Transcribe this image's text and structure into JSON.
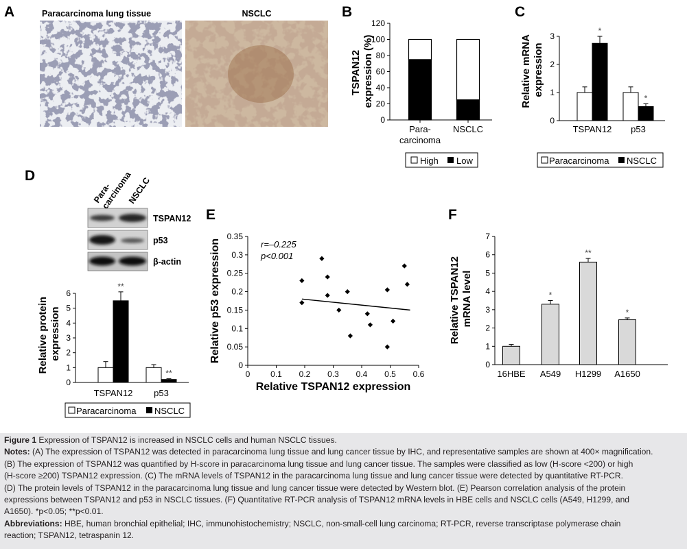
{
  "panels": {
    "A": {
      "letter": "A",
      "left_title": "Paracarcinoma lung tissue",
      "right_title": "NSCLC"
    },
    "B": {
      "letter": "B",
      "ylabel_line1": "TSPAN12",
      "ylabel_line2": "expression (%)",
      "legend": [
        "High",
        "Low"
      ]
    },
    "C": {
      "letter": "C",
      "ylabel_line1": "Relative mRNA",
      "ylabel_line2": "expression",
      "legend": [
        "Paracarcinoma",
        "NSCLC"
      ]
    },
    "D": {
      "letter": "D",
      "blot_lanes": [
        "Para-",
        "carcinoma",
        "NSCLC"
      ],
      "blot_labels": [
        "TSPAN12",
        "p53",
        "β-actin"
      ],
      "ylabel_line1": "Relative protein",
      "ylabel_line2": "expression",
      "legend": [
        "Paracarcinoma",
        "NSCLC"
      ]
    },
    "E": {
      "letter": "E",
      "stat_r": "r=–0.225",
      "stat_p": "p<0.001"
    },
    "F": {
      "letter": "F",
      "ylabel_line1": "Relative TSPAN12",
      "ylabel_line2": "mRNA level"
    }
  },
  "chart_data": [
    {
      "panel": "B",
      "type": "bar",
      "stacked": true,
      "categories": [
        "Para-carcinoma",
        "NSCLC"
      ],
      "category_lines": [
        [
          "Para-",
          "carcinoma"
        ],
        [
          "NSCLC"
        ]
      ],
      "series": [
        {
          "name": "Low",
          "values": [
            75,
            25
          ],
          "color": "#000000"
        },
        {
          "name": "High",
          "values": [
            25,
            75
          ],
          "color": "#ffffff"
        }
      ],
      "ylabel": "TSPAN12 expression (%)",
      "ylim": [
        0,
        120
      ],
      "yticks": [
        0,
        20,
        40,
        60,
        80,
        100,
        120
      ]
    },
    {
      "panel": "C",
      "type": "bar",
      "categories": [
        "TSPAN12",
        "p53"
      ],
      "series": [
        {
          "name": "Paracarcinoma",
          "values": [
            1.0,
            1.0
          ],
          "errors": [
            0.2,
            0.2
          ],
          "color": "#ffffff"
        },
        {
          "name": "NSCLC",
          "values": [
            2.75,
            0.5
          ],
          "errors": [
            0.25,
            0.1
          ],
          "color": "#000000"
        }
      ],
      "significance": [
        [
          "",
          "*"
        ],
        [
          "",
          "*"
        ]
      ],
      "ylabel": "Relative mRNA expression",
      "ylim": [
        0,
        3
      ],
      "yticks": [
        0,
        1,
        2,
        3
      ]
    },
    {
      "panel": "D",
      "type": "bar",
      "categories": [
        "TSPAN12",
        "p53"
      ],
      "series": [
        {
          "name": "Paracarcinoma",
          "values": [
            1.0,
            1.0
          ],
          "errors": [
            0.4,
            0.2
          ],
          "color": "#ffffff"
        },
        {
          "name": "NSCLC",
          "values": [
            5.5,
            0.2
          ],
          "errors": [
            0.6,
            0.05
          ],
          "color": "#000000"
        }
      ],
      "significance": [
        [
          "",
          "**"
        ],
        [
          "",
          "**"
        ]
      ],
      "ylabel": "Relative protein expression",
      "ylim": [
        0,
        6
      ],
      "yticks": [
        0,
        1,
        2,
        3,
        4,
        5,
        6
      ]
    },
    {
      "panel": "E",
      "type": "scatter",
      "points": [
        [
          0.19,
          0.23
        ],
        [
          0.19,
          0.17
        ],
        [
          0.26,
          0.29
        ],
        [
          0.28,
          0.24
        ],
        [
          0.28,
          0.19
        ],
        [
          0.32,
          0.15
        ],
        [
          0.35,
          0.2
        ],
        [
          0.36,
          0.08
        ],
        [
          0.42,
          0.14
        ],
        [
          0.43,
          0.11
        ],
        [
          0.49,
          0.205
        ],
        [
          0.49,
          0.05
        ],
        [
          0.51,
          0.12
        ],
        [
          0.55,
          0.27
        ],
        [
          0.56,
          0.22
        ]
      ],
      "fit_line": [
        [
          0.19,
          0.18
        ],
        [
          0.57,
          0.15
        ]
      ],
      "xlabel": "Relative TSPAN12 expression",
      "ylabel": "Relative p53 expression",
      "xlim": [
        0,
        0.6
      ],
      "ylim": [
        0,
        0.35
      ],
      "xticks": [
        0,
        0.1,
        0.2,
        0.3,
        0.4,
        0.5,
        0.6
      ],
      "yticks": [
        0,
        0.05,
        0.1,
        0.15,
        0.2,
        0.25,
        0.3,
        0.35
      ]
    },
    {
      "panel": "F",
      "type": "bar",
      "categories": [
        "16HBE",
        "A549",
        "H1299",
        "A1650"
      ],
      "values": [
        1.0,
        3.3,
        5.6,
        2.45
      ],
      "errors": [
        0.1,
        0.2,
        0.2,
        0.1
      ],
      "significance": [
        "",
        "*",
        "**",
        "*"
      ],
      "color": "#d9d9d9",
      "ylabel": "Relative TSPAN12 mRNA level",
      "ylim": [
        0,
        7
      ],
      "yticks": [
        0,
        1,
        2,
        3,
        4,
        5,
        6,
        7
      ]
    }
  ],
  "caption": {
    "fig_label": "Figure 1",
    "fig_title": " Expression of TSPAN12 is increased in NSCLC cells and human NSCLC tissues.",
    "notes_label": "Notes:",
    "notes_lines": [
      " (A) The expression of TSPAN12 was detected in paracarcinoma lung tissue and lung cancer tissue by IHC, and representative samples are shown at 400× magnification.",
      "(B) The expression of TSPAN12 was quantified by H-score in paracarcinoma lung tissue and lung cancer tissue. The samples were classified as low (H-score <200) or high",
      "(H-score ≥200) TSPAN12 expression. (C) The mRNA levels of TSPAN12 in the paracarcinoma lung tissue and lung cancer tissue were detected by quantitative RT-PCR.",
      "(D) The protein levels of TSPAN12 in the paracarcinoma lung tissue and lung cancer tissue were detected by Western blot. (E) Pearson correlation analysis of the protein",
      "expressions between TSPAN12 and p53 in NSCLC tissues. (F) Quantitative RT-PCR analysis of TSPAN12 mRNA levels in HBE cells and NSCLC cells (A549, H1299, and",
      "A1650). *p<0.05; **p<0.01."
    ],
    "abbrev_label": "Abbreviations:",
    "abbrev_lines": [
      " HBE, human bronchial epithelial; IHC, immunohistochemistry; NSCLC, non-small-cell lung carcinoma; RT-PCR, reverse transcriptase polymerase chain",
      "reaction; TSPAN12, tetraspanin 12."
    ]
  }
}
